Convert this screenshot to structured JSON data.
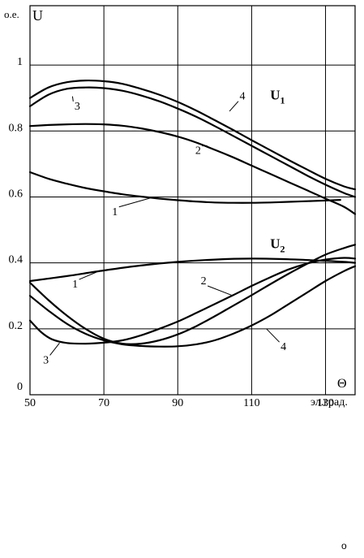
{
  "chart_data": {
    "type": "line",
    "title": "",
    "ylabel": "U",
    "yunit": "о.е.",
    "xlabel": "Θ",
    "xunit": "эл.град.",
    "xlim": [
      50,
      138
    ],
    "ylim": [
      0,
      1.18
    ],
    "grid": true,
    "x_ticks": [
      50,
      70,
      90,
      110,
      130
    ],
    "y_ticks": [
      {
        "value": 0,
        "label": "0"
      },
      {
        "value": 0.2,
        "label": "0.2"
      },
      {
        "value": 0.4,
        "label": "0.4"
      },
      {
        "value": 0.6,
        "label": "0.6"
      },
      {
        "value": 0.8,
        "label": "0.8"
      },
      {
        "value": 1,
        "label": "1"
      }
    ],
    "groups": [
      {
        "label": "U",
        "sub": "1",
        "at": [
          115,
          0.895
        ]
      },
      {
        "label": "U",
        "sub": "2",
        "at": [
          115,
          0.445
        ]
      }
    ],
    "series": [
      {
        "group": "U1",
        "name": "1",
        "points": [
          [
            50,
            0.675
          ],
          [
            55,
            0.655
          ],
          [
            60,
            0.64
          ],
          [
            65,
            0.627
          ],
          [
            70,
            0.617
          ],
          [
            75,
            0.608
          ],
          [
            80,
            0.601
          ],
          [
            85,
            0.595
          ],
          [
            90,
            0.59
          ],
          [
            95,
            0.586
          ],
          [
            100,
            0.583
          ],
          [
            105,
            0.582
          ],
          [
            110,
            0.582
          ],
          [
            115,
            0.583
          ],
          [
            120,
            0.585
          ],
          [
            125,
            0.587
          ],
          [
            130,
            0.589
          ],
          [
            134,
            0.591
          ]
        ]
      },
      {
        "group": "U1",
        "name": "2",
        "points": [
          [
            50,
            0.815
          ],
          [
            55,
            0.818
          ],
          [
            60,
            0.82
          ],
          [
            65,
            0.821
          ],
          [
            70,
            0.82
          ],
          [
            75,
            0.816
          ],
          [
            80,
            0.808
          ],
          [
            85,
            0.797
          ],
          [
            90,
            0.783
          ],
          [
            95,
            0.765
          ],
          [
            100,
            0.743
          ],
          [
            105,
            0.72
          ],
          [
            110,
            0.695
          ],
          [
            115,
            0.67
          ],
          [
            120,
            0.645
          ],
          [
            125,
            0.62
          ],
          [
            130,
            0.595
          ],
          [
            135,
            0.57
          ],
          [
            138,
            0.548
          ]
        ]
      },
      {
        "group": "U1",
        "name": "3",
        "points": [
          [
            50,
            0.875
          ],
          [
            55,
            0.91
          ],
          [
            60,
            0.928
          ],
          [
            65,
            0.932
          ],
          [
            70,
            0.93
          ],
          [
            75,
            0.922
          ],
          [
            80,
            0.908
          ],
          [
            85,
            0.89
          ],
          [
            90,
            0.868
          ],
          [
            95,
            0.843
          ],
          [
            100,
            0.815
          ],
          [
            105,
            0.785
          ],
          [
            110,
            0.755
          ],
          [
            115,
            0.725
          ],
          [
            120,
            0.695
          ],
          [
            125,
            0.665
          ],
          [
            130,
            0.637
          ],
          [
            135,
            0.612
          ],
          [
            138,
            0.6
          ]
        ]
      },
      {
        "group": "U1",
        "name": "4",
        "points": [
          [
            50,
            0.9
          ],
          [
            55,
            0.932
          ],
          [
            60,
            0.948
          ],
          [
            65,
            0.953
          ],
          [
            70,
            0.951
          ],
          [
            75,
            0.943
          ],
          [
            80,
            0.928
          ],
          [
            85,
            0.91
          ],
          [
            90,
            0.888
          ],
          [
            95,
            0.862
          ],
          [
            100,
            0.833
          ],
          [
            105,
            0.803
          ],
          [
            110,
            0.772
          ],
          [
            115,
            0.742
          ],
          [
            120,
            0.712
          ],
          [
            125,
            0.683
          ],
          [
            130,
            0.655
          ],
          [
            135,
            0.632
          ],
          [
            138,
            0.623
          ]
        ]
      },
      {
        "group": "U2",
        "name": "1",
        "points": [
          [
            50,
            0.345
          ],
          [
            60,
            0.36
          ],
          [
            70,
            0.377
          ],
          [
            80,
            0.392
          ],
          [
            90,
            0.403
          ],
          [
            100,
            0.41
          ],
          [
            110,
            0.413
          ],
          [
            120,
            0.411
          ],
          [
            130,
            0.406
          ],
          [
            135,
            0.403
          ],
          [
            138,
            0.4
          ]
        ]
      },
      {
        "group": "U2",
        "name": "2",
        "points": [
          [
            50,
            0.34
          ],
          [
            55,
            0.287
          ],
          [
            60,
            0.24
          ],
          [
            65,
            0.2
          ],
          [
            70,
            0.17
          ],
          [
            75,
            0.155
          ],
          [
            80,
            0.155
          ],
          [
            85,
            0.165
          ],
          [
            90,
            0.183
          ],
          [
            95,
            0.208
          ],
          [
            100,
            0.238
          ],
          [
            105,
            0.27
          ],
          [
            110,
            0.302
          ],
          [
            115,
            0.335
          ],
          [
            120,
            0.367
          ],
          [
            125,
            0.397
          ],
          [
            130,
            0.425
          ],
          [
            135,
            0.445
          ],
          [
            138,
            0.455
          ]
        ]
      },
      {
        "group": "U2",
        "name": "3",
        "points": [
          [
            50,
            0.225
          ],
          [
            53,
            0.19
          ],
          [
            56,
            0.168
          ],
          [
            60,
            0.157
          ],
          [
            65,
            0.155
          ],
          [
            70,
            0.158
          ],
          [
            75,
            0.165
          ],
          [
            80,
            0.18
          ],
          [
            85,
            0.2
          ],
          [
            90,
            0.222
          ],
          [
            95,
            0.248
          ],
          [
            100,
            0.275
          ],
          [
            105,
            0.302
          ],
          [
            110,
            0.33
          ],
          [
            115,
            0.356
          ],
          [
            120,
            0.38
          ],
          [
            125,
            0.398
          ],
          [
            130,
            0.41
          ],
          [
            135,
            0.415
          ],
          [
            138,
            0.413
          ]
        ]
      },
      {
        "group": "U2",
        "name": "4",
        "points": [
          [
            50,
            0.3
          ],
          [
            55,
            0.255
          ],
          [
            60,
            0.215
          ],
          [
            65,
            0.185
          ],
          [
            70,
            0.165
          ],
          [
            75,
            0.153
          ],
          [
            80,
            0.148
          ],
          [
            85,
            0.146
          ],
          [
            90,
            0.147
          ],
          [
            95,
            0.153
          ],
          [
            100,
            0.165
          ],
          [
            105,
            0.185
          ],
          [
            110,
            0.21
          ],
          [
            115,
            0.24
          ],
          [
            120,
            0.275
          ],
          [
            125,
            0.31
          ],
          [
            130,
            0.345
          ],
          [
            135,
            0.375
          ],
          [
            138,
            0.39
          ]
        ]
      }
    ],
    "curve_labels": [
      {
        "text": "4",
        "at": [
          107.5,
          0.895
        ],
        "to": [
          104,
          0.86
        ]
      },
      {
        "text": "3",
        "at": [
          62.8,
          0.865
        ],
        "to": [
          61.5,
          0.905
        ]
      },
      {
        "text": "2",
        "at": [
          95.5,
          0.73
        ],
        "to": [
          98,
          0.755
        ]
      },
      {
        "text": "1",
        "at": [
          73,
          0.545
        ],
        "to": [
          83,
          0.598
        ]
      },
      {
        "text": "1",
        "at": [
          62.2,
          0.325
        ],
        "to": [
          68,
          0.372
        ]
      },
      {
        "text": "2",
        "at": [
          97,
          0.335
        ],
        "to": [
          105,
          0.3
        ]
      },
      {
        "text": "3",
        "at": [
          54.3,
          0.095
        ],
        "to": [
          58,
          0.157
        ]
      },
      {
        "text": "4",
        "at": [
          118.6,
          0.135
        ],
        "to": [
          114,
          0.2
        ]
      }
    ]
  },
  "footer_mark": "o"
}
